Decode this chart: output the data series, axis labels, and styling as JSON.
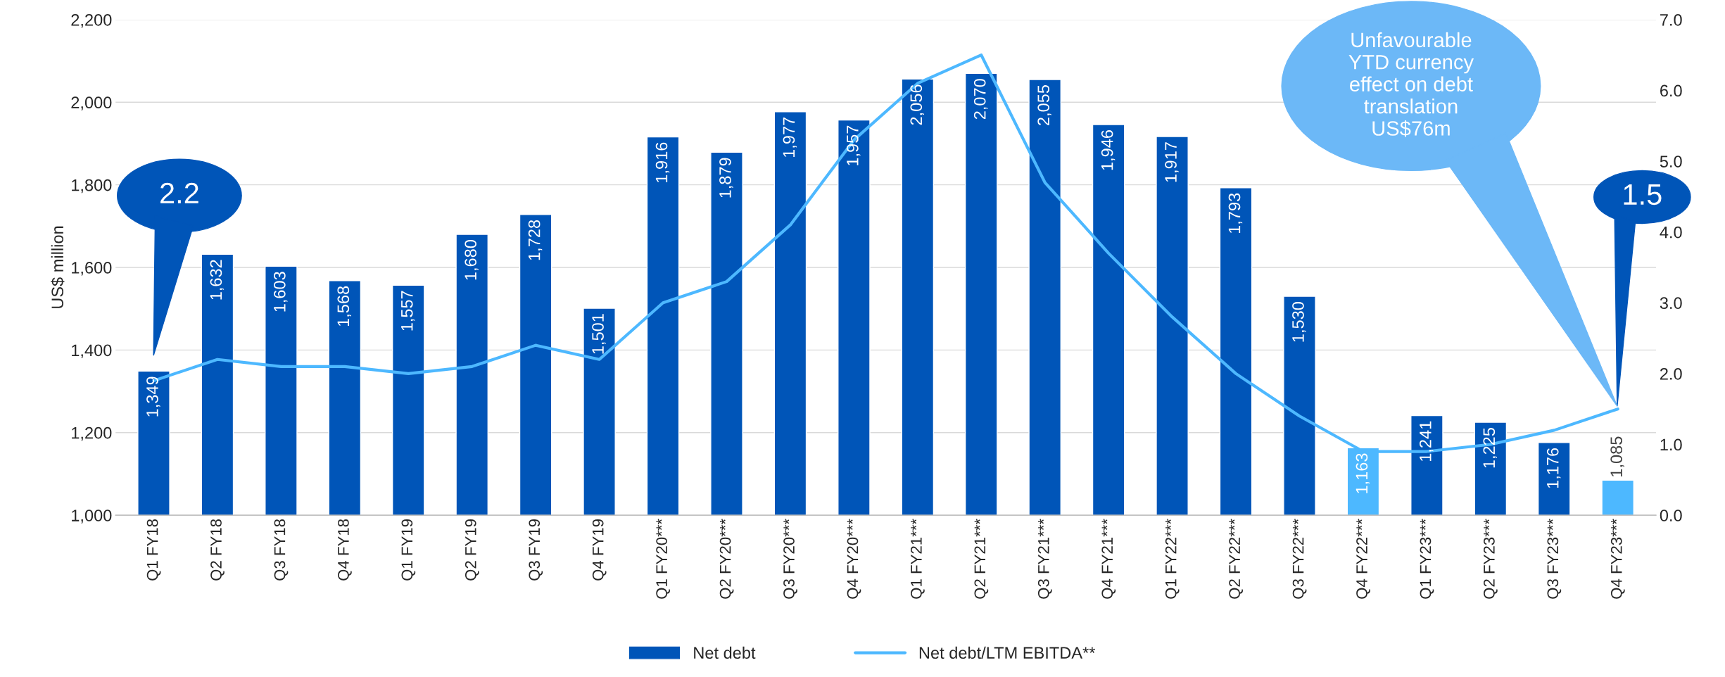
{
  "chart_data": {
    "type": "bar",
    "ylabel": "US$ million",
    "categories": [
      "Q1 FY18",
      "Q2 FY18",
      "Q3 FY18",
      "Q4 FY18",
      "Q1 FY19",
      "Q2 FY19",
      "Q3 FY19",
      "Q4 FY19",
      "Q1 FY20***",
      "Q2 FY20***",
      "Q3 FY20***",
      "Q4 FY20***",
      "Q1 FY21***",
      "Q2 FY21***",
      "Q3 FY21***",
      "Q4 FY21***",
      "Q1 FY22***",
      "Q2 FY22***",
      "Q3 FY22***",
      "Q4 FY22***",
      "Q1 FY23***",
      "Q2 FY23***",
      "Q3 FY23***",
      "Q4 FY23***"
    ],
    "series": [
      {
        "name": "Net debt",
        "color": "#0055b8",
        "colors": [
          "#0055b8",
          "#0055b8",
          "#0055b8",
          "#0055b8",
          "#0055b8",
          "#0055b8",
          "#0055b8",
          "#0055b8",
          "#0055b8",
          "#0055b8",
          "#0055b8",
          "#0055b8",
          "#0055b8",
          "#0055b8",
          "#0055b8",
          "#0055b8",
          "#0055b8",
          "#0055b8",
          "#0055b8",
          "#4db8ff",
          "#0055b8",
          "#0055b8",
          "#0055b8",
          "#4db8ff"
        ],
        "values": [
          1349,
          1632,
          1603,
          1568,
          1557,
          1680,
          1728,
          1501,
          1916,
          1879,
          1977,
          1957,
          2056,
          2070,
          2055,
          1946,
          1917,
          1793,
          1530,
          1163,
          1241,
          1225,
          1176,
          1085
        ],
        "value_labels": [
          "1,349",
          "1,632",
          "1,603",
          "1,568",
          "1,557",
          "1,680",
          "1,728",
          "1,501",
          "1,916",
          "1,879",
          "1,977",
          "1,957",
          "2,056",
          "2,070",
          "2,055",
          "1,946",
          "1,917",
          "1,793",
          "1,530",
          "1,163",
          "1,241",
          "1,225",
          "1,176",
          "1,085"
        ]
      },
      {
        "name": "Net debt/LTM EBITDA**",
        "type": "line",
        "axis": "y2",
        "color": "#4db8ff",
        "values": [
          1.9,
          2.2,
          2.1,
          2.1,
          2.0,
          2.1,
          2.4,
          2.2,
          3.0,
          3.3,
          4.1,
          5.3,
          6.1,
          6.5,
          4.7,
          3.7,
          2.8,
          2.0,
          1.4,
          0.9,
          0.9,
          1.0,
          1.2,
          1.5
        ]
      }
    ],
    "ylim": [
      1000,
      2200
    ],
    "yticks": [
      {
        "value": 1000,
        "label": "1,000"
      },
      {
        "value": 1200,
        "label": "1,200"
      },
      {
        "value": 1400,
        "label": "1,400"
      },
      {
        "value": 1600,
        "label": "1,600"
      },
      {
        "value": 1800,
        "label": "1,800"
      },
      {
        "value": 2000,
        "label": "2,000"
      },
      {
        "value": 2200,
        "label": "2,200"
      }
    ],
    "y2lim": [
      0,
      7
    ],
    "y2ticks": [
      {
        "value": 0,
        "label": "0.0"
      },
      {
        "value": 1,
        "label": "1.0"
      },
      {
        "value": 2,
        "label": "2.0"
      },
      {
        "value": 3,
        "label": "3.0"
      },
      {
        "value": 4,
        "label": "4.0"
      },
      {
        "value": 5,
        "label": "5.0"
      },
      {
        "value": 6,
        "label": "6.0"
      },
      {
        "value": 7,
        "label": "7.0"
      }
    ],
    "grid": "y",
    "legend": "bottom",
    "annotations": [
      "2.2",
      "1.5",
      "Unfavourable YTD currency effect on debt translation US$76m"
    ]
  }
}
